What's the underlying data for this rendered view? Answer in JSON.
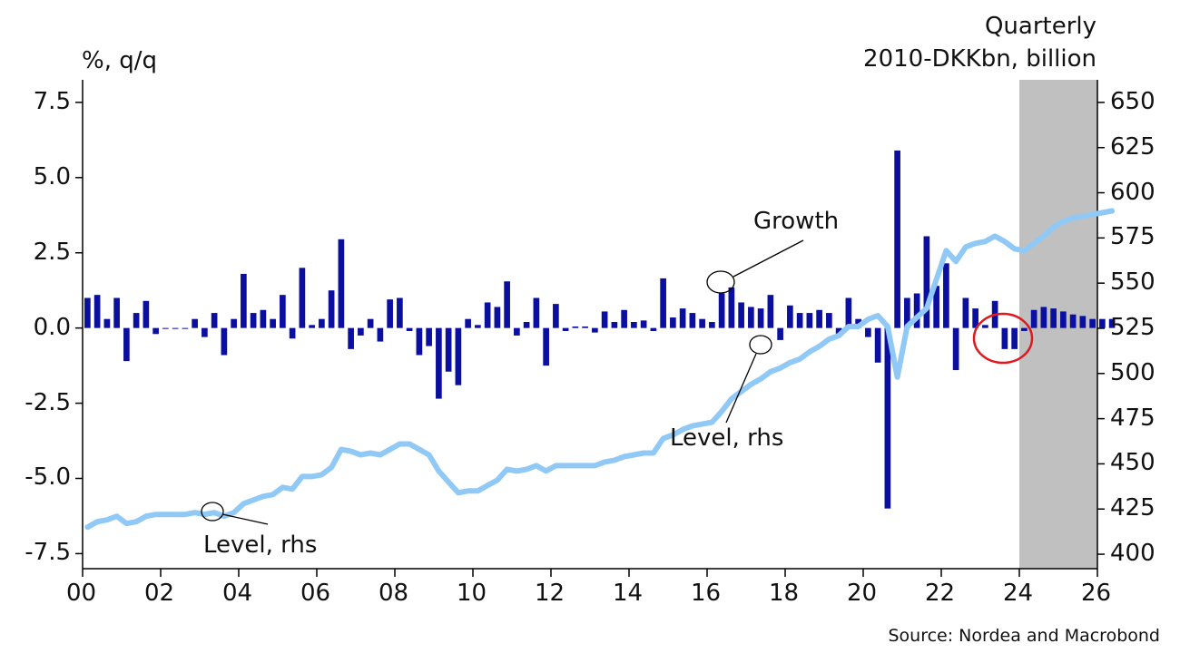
{
  "chart_data": {
    "type": "bar",
    "left_unit": "%, q/q",
    "right_unit_line1": "Quarterly",
    "right_unit_line2": "2010-DKKbn, billion",
    "source": "Source: Nordea and Macrobond",
    "x_ticks": [
      "00",
      "02",
      "04",
      "06",
      "08",
      "10",
      "12",
      "14",
      "16",
      "18",
      "20",
      "22",
      "24",
      "26"
    ],
    "y_left_ticks": [
      "7.5",
      "5.0",
      "2.5",
      "0.0",
      "-2.5",
      "-5.0",
      "-7.5"
    ],
    "y_right_ticks": [
      "650",
      "625",
      "600",
      "575",
      "550",
      "525",
      "500",
      "475",
      "450",
      "425",
      "400"
    ],
    "xlim": [
      2000,
      2026
    ],
    "ylim_left": [
      -7.5,
      7.5
    ],
    "ylim_right": [
      400,
      650
    ],
    "forecast_start": 2024,
    "annotations": {
      "growth": "Growth",
      "level_mid": "Level, rhs",
      "level_low": "Level, rhs"
    },
    "colors": {
      "bars": "#0a0fa0",
      "line": "#90c8f6",
      "forecast_shade": "#c0c0c0",
      "highlight_circle": "#e0191e"
    },
    "series": [
      {
        "kind": "bar",
        "axis": "left",
        "start_year": 2000,
        "quarterly": true,
        "values": [
          1.0,
          1.1,
          0.3,
          1.0,
          -1.1,
          0.5,
          0.9,
          -0.2,
          0.0,
          0.0,
          0.0,
          0.3,
          -0.3,
          0.5,
          -0.9,
          0.3,
          1.8,
          0.5,
          0.6,
          0.3,
          1.1,
          -0.35,
          2.0,
          0.1,
          0.3,
          1.25,
          2.95,
          -0.7,
          -0.25,
          0.3,
          -0.45,
          0.95,
          1.0,
          -0.1,
          -0.9,
          -0.6,
          -2.35,
          -1.45,
          -1.9,
          0.3,
          0.1,
          0.85,
          0.7,
          1.55,
          -0.25,
          0.2,
          1.0,
          -1.25,
          0.8,
          -0.1,
          0.05,
          0.05,
          -0.15,
          0.55,
          0.2,
          0.6,
          0.2,
          0.25,
          -0.1,
          1.65,
          0.35,
          0.65,
          0.5,
          0.3,
          0.2,
          1.15,
          1.35,
          0.85,
          0.7,
          0.65,
          1.1,
          -0.4,
          0.75,
          0.5,
          0.5,
          0.6,
          0.5,
          -0.25,
          1.0,
          0.3,
          -0.3,
          -1.15,
          -6.0,
          5.9,
          1.0,
          1.15,
          3.05,
          1.4,
          2.15,
          -1.4,
          1.0,
          0.65,
          0.1,
          0.9,
          -0.7,
          -0.7,
          -0.1,
          0.6,
          0.7,
          0.65,
          0.55,
          0.45,
          0.4,
          0.3,
          0.3,
          0.3
        ]
      },
      {
        "kind": "line",
        "axis": "right",
        "start_year": 2000,
        "quarterly": true,
        "values": [
          415,
          418,
          419,
          421,
          417,
          418,
          421,
          422,
          422,
          422,
          422,
          423,
          422,
          423,
          421,
          423,
          428,
          430,
          432,
          433,
          437,
          436,
          443,
          443,
          444,
          448,
          458,
          457,
          455,
          456,
          455,
          458,
          461,
          461,
          458,
          455,
          446,
          440,
          434,
          435,
          435,
          438,
          441,
          447,
          446,
          447,
          449,
          446,
          449,
          449,
          449,
          449,
          449,
          451,
          452,
          454,
          455,
          456,
          456,
          464,
          466,
          469,
          471,
          472,
          473,
          479,
          486,
          490,
          494,
          497,
          501,
          503,
          506,
          508,
          512,
          515,
          519,
          521,
          526,
          526,
          530,
          532,
          526,
          498,
          526,
          531,
          536,
          552,
          568,
          562,
          570,
          572,
          573,
          576,
          573,
          569,
          568,
          572,
          576,
          581,
          584,
          586,
          587,
          588,
          589,
          590
        ]
      }
    ]
  }
}
